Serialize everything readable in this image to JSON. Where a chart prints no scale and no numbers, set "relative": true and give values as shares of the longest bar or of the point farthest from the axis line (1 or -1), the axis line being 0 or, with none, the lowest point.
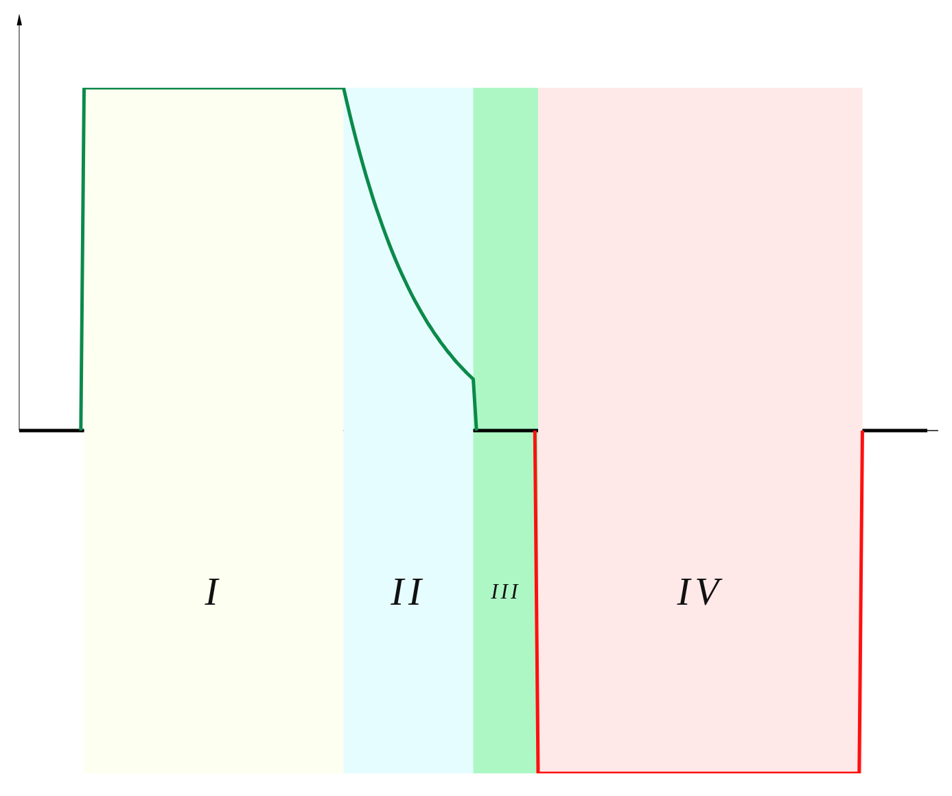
{
  "chart_data": {
    "type": "line",
    "relative": true,
    "categories": [
      null,
      null,
      null,
      null,
      null,
      null,
      null,
      null,
      null,
      null,
      null,
      null,
      null,
      null,
      null,
      null,
      null,
      null,
      null,
      null,
      null,
      null,
      null,
      null,
      null,
      null,
      null,
      null,
      null,
      null,
      null,
      null,
      null,
      null,
      null,
      null,
      null,
      null,
      null,
      null,
      null,
      null,
      null,
      null,
      null,
      null,
      null,
      null,
      null,
      null,
      null,
      null,
      null,
      null,
      null,
      null,
      null,
      null,
      null,
      null,
      null,
      null,
      null,
      null,
      null,
      null,
      null,
      null,
      null,
      null,
      null,
      null,
      null,
      null,
      null,
      null,
      null,
      null,
      null,
      null,
      null,
      null,
      null,
      null,
      null,
      null,
      null,
      null,
      null,
      null,
      null,
      null,
      null,
      null,
      null,
      null,
      null,
      null,
      null,
      null,
      null,
      null,
      null,
      null,
      null,
      null,
      null,
      null,
      null,
      null,
      null,
      null,
      null,
      null,
      null,
      null,
      null,
      null,
      null,
      null,
      null,
      null,
      null,
      null,
      null,
      null,
      null,
      null,
      null,
      null,
      null,
      null,
      null,
      null,
      null,
      null,
      null,
      null,
      null,
      null,
      null,
      null,
      null,
      null,
      null,
      null,
      null,
      null,
      null,
      null,
      null,
      null,
      null,
      null,
      null,
      null,
      null,
      null,
      null,
      null,
      null,
      null,
      null,
      null,
      null,
      null,
      null,
      null,
      null,
      null,
      null,
      null,
      null,
      null,
      null,
      null,
      null,
      null,
      null,
      null,
      null,
      null,
      null,
      null,
      null,
      null,
      null,
      null,
      null,
      null,
      null,
      null,
      null,
      null,
      null,
      null,
      null,
      null,
      null,
      null,
      null,
      null,
      null,
      null,
      null,
      null,
      null,
      null,
      null,
      null,
      null,
      null,
      null,
      null,
      null,
      null,
      null,
      null,
      null,
      null,
      null,
      null,
      null,
      null,
      null,
      null,
      null,
      null,
      null,
      null,
      null,
      null,
      null,
      null,
      null,
      null,
      null,
      null,
      null,
      null,
      null,
      null,
      null,
      null,
      null,
      null,
      null,
      null,
      null,
      null,
      null,
      null,
      null,
      null,
      null,
      null,
      null,
      null,
      null,
      null,
      null,
      null,
      null,
      null,
      null,
      null,
      null,
      null,
      null,
      null,
      null,
      null,
      null,
      null,
      null,
      null,
      null,
      null,
      null,
      null,
      null
    ],
    "series": [
      {
        "color": "#000000",
        "values": [
          0,
          0,
          0,
          0,
          0,
          0,
          0,
          0,
          0,
          0,
          0,
          0,
          0,
          0,
          0,
          0,
          0,
          0,
          0,
          0,
          0,
          null,
          null,
          null,
          null,
          null,
          null,
          null,
          null,
          null,
          null,
          null,
          null,
          null,
          null,
          null,
          null,
          null,
          null,
          null,
          null,
          null,
          null,
          null,
          null,
          null,
          null,
          null,
          null,
          null,
          null,
          null,
          null,
          null,
          null,
          null,
          null,
          null,
          null,
          null,
          null,
          null,
          null,
          null,
          null,
          null,
          null,
          null,
          null,
          null,
          null,
          null,
          null,
          null,
          null,
          null,
          null,
          null,
          null,
          null,
          null,
          null,
          null,
          null,
          null,
          null,
          null,
          null,
          null,
          null,
          null,
          null,
          null,
          null,
          null,
          null,
          null,
          null,
          null,
          null,
          null,
          null,
          null,
          null,
          null,
          null,
          null,
          null,
          null,
          null,
          null,
          null,
          null,
          null,
          null,
          null,
          null,
          null,
          null,
          null,
          null,
          null,
          null,
          null,
          null,
          null,
          null,
          null,
          null,
          null,
          null,
          null,
          null,
          null,
          null,
          null,
          null,
          null,
          null,
          null,
          0,
          0,
          0,
          0,
          0,
          0,
          0,
          0,
          0,
          0,
          0,
          0,
          0,
          0,
          0,
          0,
          0,
          0,
          0,
          0,
          0,
          null,
          null,
          null,
          null,
          null,
          null,
          null,
          null,
          null,
          null,
          null,
          null,
          null,
          null,
          null,
          null,
          null,
          null,
          null,
          null,
          null,
          null,
          null,
          null,
          null,
          null,
          null,
          null,
          null,
          null,
          null,
          null,
          null,
          null,
          null,
          null,
          null,
          null,
          null,
          null,
          null,
          null,
          null,
          null,
          null,
          null,
          null,
          null,
          null,
          null,
          null,
          null,
          null,
          null,
          null,
          null,
          null,
          null,
          null,
          null,
          null,
          null,
          null,
          null,
          null,
          null,
          null,
          null,
          null,
          null,
          null,
          null,
          null,
          null,
          null,
          null,
          null,
          null,
          null,
          null,
          null,
          null,
          null,
          null,
          null,
          null,
          null,
          null,
          null,
          null,
          null,
          null,
          null,
          null,
          null,
          null,
          null,
          null,
          null,
          0,
          0,
          0,
          0,
          0,
          0,
          0,
          0,
          0,
          0,
          0,
          0,
          0,
          0,
          0,
          0,
          0,
          0,
          0,
          0,
          0
        ]
      },
      {
        "color": "#0b8a4a",
        "values": [
          null,
          null,
          null,
          null,
          null,
          null,
          null,
          null,
          null,
          null,
          null,
          null,
          null,
          null,
          null,
          null,
          null,
          null,
          null,
          0,
          1,
          1,
          1,
          1,
          1,
          1,
          1,
          1,
          1,
          1,
          1,
          1,
          1,
          1,
          1,
          1,
          1,
          1,
          1,
          1,
          1,
          1,
          1,
          1,
          1,
          1,
          1,
          1,
          1,
          1,
          1,
          1,
          1,
          1,
          1,
          1,
          1,
          1,
          1,
          1,
          1,
          1,
          1,
          1,
          1,
          1,
          1,
          1,
          1,
          1,
          1,
          1,
          1,
          1,
          1,
          1,
          1,
          1,
          1,
          1,
          1,
          1,
          1,
          1,
          1,
          1,
          1,
          1,
          1,
          1,
          1,
          1,
          1,
          1,
          1,
          1,
          1,
          1,
          1,
          1,
          1,
          0.959,
          0.919,
          0.881,
          0.844,
          0.809,
          0.775,
          0.742,
          0.711,
          0.68,
          0.651,
          0.624,
          0.597,
          0.571,
          0.546,
          0.522,
          0.499,
          0.477,
          0.456,
          0.436,
          0.416,
          0.397,
          0.379,
          0.362,
          0.345,
          0.329,
          0.313,
          0.299,
          0.284,
          0.271,
          0.257,
          0.245,
          0.232,
          0.221,
          0.209,
          0.198,
          0.188,
          0.178,
          0.168,
          0.159,
          0.15,
          0,
          null,
          null,
          null,
          null,
          null,
          null,
          null,
          null,
          null,
          null,
          null,
          null,
          null,
          null,
          null,
          null,
          null,
          null,
          null,
          null,
          null,
          null,
          null,
          null,
          null,
          null,
          null,
          null,
          null,
          null,
          null,
          null,
          null,
          null,
          null,
          null,
          null,
          null,
          null,
          null,
          null,
          null,
          null,
          null,
          null,
          null,
          null,
          null,
          null,
          null,
          null,
          null,
          null,
          null,
          null,
          null,
          null,
          null,
          null,
          null,
          null,
          null,
          null,
          null,
          null,
          null,
          null,
          null,
          null,
          null,
          null,
          null,
          null,
          null,
          null,
          null,
          null,
          null,
          null,
          null,
          null,
          null,
          null,
          null,
          null,
          null,
          null,
          null,
          null,
          null,
          null,
          null,
          null,
          null,
          null,
          null,
          null,
          null,
          null,
          null,
          null,
          null,
          null,
          null,
          null,
          null,
          null,
          null,
          null,
          null,
          null,
          null,
          null,
          null,
          null,
          null,
          null,
          null,
          null,
          null,
          null,
          null,
          null,
          null,
          null,
          null,
          null,
          null,
          null,
          null,
          null,
          null,
          null,
          null,
          null,
          null,
          null,
          null,
          null
        ]
      },
      {
        "color": "#ff1010",
        "values": [
          null,
          null,
          null,
          null,
          null,
          null,
          null,
          null,
          null,
          null,
          null,
          null,
          null,
          null,
          null,
          null,
          null,
          null,
          null,
          null,
          null,
          null,
          null,
          null,
          null,
          null,
          null,
          null,
          null,
          null,
          null,
          null,
          null,
          null,
          null,
          null,
          null,
          null,
          null,
          null,
          null,
          null,
          null,
          null,
          null,
          null,
          null,
          null,
          null,
          null,
          null,
          null,
          null,
          null,
          null,
          null,
          null,
          null,
          null,
          null,
          null,
          null,
          null,
          null,
          null,
          null,
          null,
          null,
          null,
          null,
          null,
          null,
          null,
          null,
          null,
          null,
          null,
          null,
          null,
          null,
          null,
          null,
          null,
          null,
          null,
          null,
          null,
          null,
          null,
          null,
          null,
          null,
          null,
          null,
          null,
          null,
          null,
          null,
          null,
          null,
          null,
          null,
          null,
          null,
          null,
          null,
          null,
          null,
          null,
          null,
          null,
          null,
          null,
          null,
          null,
          null,
          null,
          null,
          null,
          null,
          null,
          null,
          null,
          null,
          null,
          null,
          null,
          null,
          null,
          null,
          null,
          null,
          null,
          null,
          null,
          null,
          null,
          null,
          null,
          null,
          null,
          null,
          null,
          null,
          null,
          null,
          null,
          null,
          null,
          null,
          null,
          null,
          null,
          null,
          null,
          null,
          null,
          null,
          null,
          0,
          -1,
          -1,
          -1,
          -1,
          -1,
          -1,
          -1,
          -1,
          -1,
          -1,
          -1,
          -1,
          -1,
          -1,
          -1,
          -1,
          -1,
          -1,
          -1,
          -1,
          -1,
          -1,
          -1,
          -1,
          -1,
          -1,
          -1,
          -1,
          -1,
          -1,
          -1,
          -1,
          -1,
          -1,
          -1,
          -1,
          -1,
          -1,
          -1,
          -1,
          -1,
          -1,
          -1,
          -1,
          -1,
          -1,
          -1,
          -1,
          -1,
          -1,
          -1,
          -1,
          -1,
          -1,
          -1,
          -1,
          -1,
          -1,
          -1,
          -1,
          -1,
          -1,
          -1,
          -1,
          -1,
          -1,
          -1,
          -1,
          -1,
          -1,
          -1,
          -1,
          -1,
          -1,
          -1,
          -1,
          -1,
          -1,
          -1,
          -1,
          -1,
          -1,
          -1,
          -1,
          -1,
          -1,
          -1,
          -1,
          -1,
          -1,
          -1,
          -1,
          -1,
          -1,
          -1,
          -1,
          -1,
          -1,
          -1,
          -1,
          0,
          null,
          null,
          null,
          null,
          null,
          null,
          null,
          null,
          null,
          null,
          null,
          null,
          null,
          null,
          null,
          null,
          null,
          null,
          null,
          null
        ]
      }
    ],
    "annotations": [
      "I",
      "II",
      "III",
      "IV"
    ]
  }
}
